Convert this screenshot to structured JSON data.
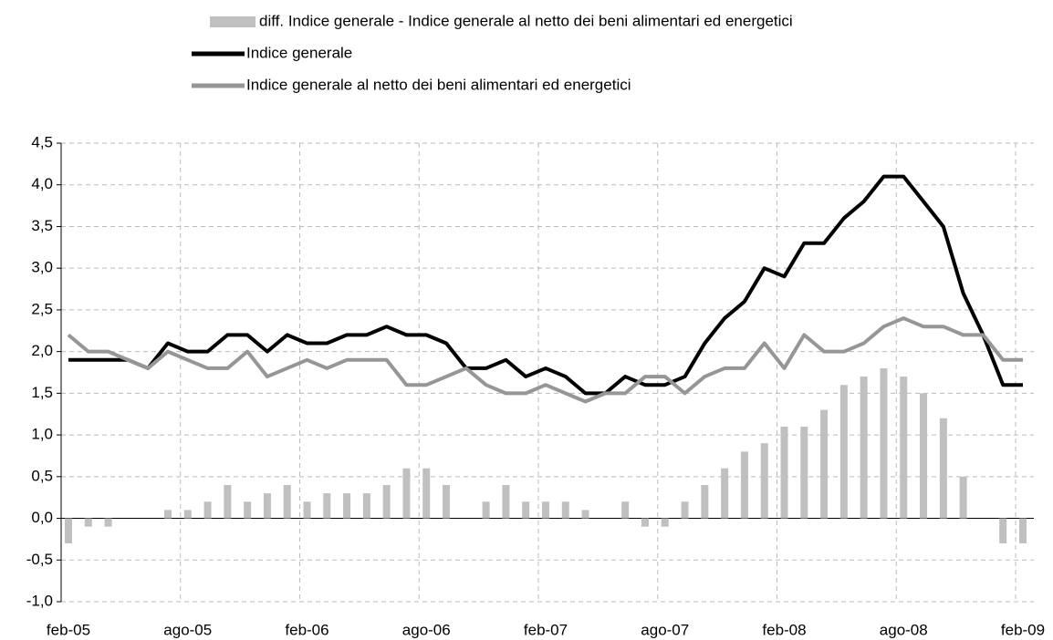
{
  "chart_data": {
    "type": "line",
    "categories": [
      "feb-05",
      null,
      null,
      null,
      null,
      null,
      "ago-05",
      null,
      null,
      null,
      null,
      null,
      "feb-06",
      null,
      null,
      null,
      null,
      null,
      "ago-06",
      null,
      null,
      null,
      null,
      null,
      "feb-07",
      null,
      null,
      null,
      null,
      null,
      "ago-07",
      null,
      null,
      null,
      null,
      null,
      "feb-08",
      null,
      null,
      null,
      null,
      null,
      "ago-08",
      null,
      null,
      null,
      null,
      null,
      "feb-09"
    ],
    "series": [
      {
        "name": "diff. Indice generale - Indice generale al netto dei beni alimentari ed energetici",
        "type": "bar",
        "color": "#c0c0c0",
        "values": [
          -0.3,
          -0.1,
          -0.1,
          0,
          0,
          0.1,
          0.1,
          0.2,
          0.4,
          0.2,
          0.3,
          0.4,
          0.2,
          0.3,
          0.3,
          0.3,
          0.4,
          0.6,
          0.6,
          0.4,
          0,
          0.2,
          0.4,
          0.2,
          0.2,
          0.2,
          0.1,
          0,
          0.2,
          -0.1,
          -0.1,
          0.2,
          0.4,
          0.6,
          0.8,
          0.9,
          1.1,
          1.1,
          1.3,
          1.6,
          1.7,
          1.8,
          1.7,
          1.5,
          1.2,
          0.5,
          0,
          -0.3,
          -0.3
        ]
      },
      {
        "name": "Indice generale",
        "type": "line",
        "color": "#000000",
        "values": [
          1.9,
          1.9,
          1.9,
          1.9,
          1.8,
          2.1,
          2.0,
          2.0,
          2.2,
          2.2,
          2.0,
          2.2,
          2.1,
          2.1,
          2.2,
          2.2,
          2.3,
          2.2,
          2.2,
          2.1,
          1.8,
          1.8,
          1.9,
          1.7,
          1.8,
          1.7,
          1.5,
          1.5,
          1.7,
          1.6,
          1.6,
          1.7,
          2.1,
          2.4,
          2.6,
          3.0,
          2.9,
          3.3,
          3.3,
          3.6,
          3.8,
          4.1,
          4.1,
          3.8,
          3.5,
          2.7,
          2.2,
          1.6,
          1.6
        ]
      },
      {
        "name": "Indice generale al netto dei beni alimentari ed energetici",
        "type": "line",
        "color": "#969696",
        "values": [
          2.2,
          2.0,
          2.0,
          1.9,
          1.8,
          2.0,
          1.9,
          1.8,
          1.8,
          2.0,
          1.7,
          1.8,
          1.9,
          1.8,
          1.9,
          1.9,
          1.9,
          1.6,
          1.6,
          1.7,
          1.8,
          1.6,
          1.5,
          1.5,
          1.6,
          1.5,
          1.4,
          1.5,
          1.5,
          1.7,
          1.7,
          1.5,
          1.7,
          1.8,
          1.8,
          2.1,
          1.8,
          2.2,
          2.0,
          2.0,
          2.1,
          2.3,
          2.4,
          2.3,
          2.3,
          2.2,
          2.2,
          1.9,
          1.9
        ]
      }
    ],
    "ylim": [
      -1.0,
      4.5
    ],
    "yticks": [
      {
        "value": -1.0,
        "label": "-1,0"
      },
      {
        "value": -0.5,
        "label": "-0,5"
      },
      {
        "value": 0,
        "label": "0,0"
      },
      {
        "value": 0.5,
        "label": "0,5"
      },
      {
        "value": 1.0,
        "label": "1,0"
      },
      {
        "value": 1.5,
        "label": "1,5"
      },
      {
        "value": 2.0,
        "label": "2,0"
      },
      {
        "value": 2.5,
        "label": "2,5"
      },
      {
        "value": 3.0,
        "label": "3,0"
      },
      {
        "value": 3.5,
        "label": "3,5"
      },
      {
        "value": 4.0,
        "label": "4,0"
      },
      {
        "value": 4.5,
        "label": "4,5"
      }
    ],
    "grid": true,
    "legend": "top"
  }
}
